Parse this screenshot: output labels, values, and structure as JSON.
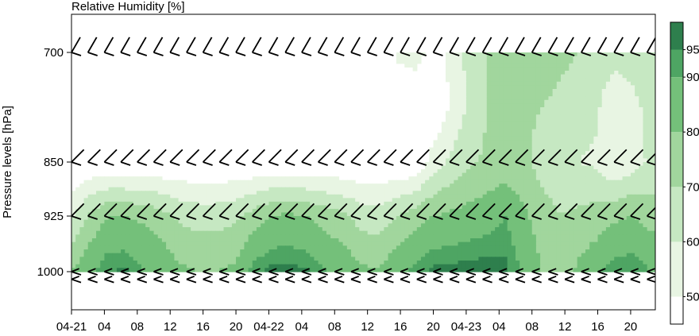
{
  "chart_data": {
    "type": "heatmap",
    "title": "Relative Humidity [%]",
    "ylabel": "Pressure levels [hPa]",
    "xlabel": "",
    "y_ticks": [
      {
        "value": 700,
        "label": "700"
      },
      {
        "value": 850,
        "label": "850"
      },
      {
        "value": 925,
        "label": "925"
      },
      {
        "value": 1000,
        "label": "1000"
      }
    ],
    "ylim": [
      1050,
      640
    ],
    "x_ticks": [
      {
        "value": 0,
        "label": "04-21"
      },
      {
        "value": 4,
        "label": "04"
      },
      {
        "value": 8,
        "label": "08"
      },
      {
        "value": 12,
        "label": "12"
      },
      {
        "value": 16,
        "label": "16"
      },
      {
        "value": 20,
        "label": "20"
      },
      {
        "value": 24,
        "label": "04-22"
      },
      {
        "value": 28,
        "label": "04"
      },
      {
        "value": 32,
        "label": "08"
      },
      {
        "value": 36,
        "label": "12"
      },
      {
        "value": 40,
        "label": "16"
      },
      {
        "value": 44,
        "label": "20"
      },
      {
        "value": 48,
        "label": "04-23"
      },
      {
        "value": 52,
        "label": "04"
      },
      {
        "value": 56,
        "label": "08"
      },
      {
        "value": 60,
        "label": "12"
      },
      {
        "value": 64,
        "label": "16"
      },
      {
        "value": 68,
        "label": "20"
      }
    ],
    "xlim": [
      0,
      71
    ],
    "colorbar": {
      "ticks": [
        50,
        60,
        70,
        80,
        90,
        95
      ],
      "levels": [
        45,
        50,
        60,
        70,
        80,
        90,
        95,
        100
      ],
      "colors": [
        "#ffffff",
        "#e8f5e3",
        "#c6e8c2",
        "#a1d69d",
        "#74c07a",
        "#4ea563",
        "#2e7f4d"
      ]
    },
    "rh_values": [
      [
        80,
        88,
        95,
        96,
        90,
        88,
        82,
        80,
        80,
        82,
        93,
        97,
        97,
        96,
        91,
        88,
        82,
        81,
        88,
        92,
        97,
        97,
        98,
        98,
        97,
        88,
        80,
        72,
        82,
        88,
        94,
        95,
        90
      ],
      [
        58,
        72,
        80,
        80,
        78,
        74,
        68,
        66,
        66,
        68,
        74,
        80,
        82,
        80,
        76,
        72,
        66,
        64,
        70,
        76,
        80,
        82,
        84,
        86,
        90,
        82,
        75,
        70,
        72,
        74,
        78,
        80,
        76
      ],
      [
        40,
        40,
        40,
        40,
        40,
        40,
        40,
        40,
        40,
        40,
        40,
        40,
        40,
        40,
        40,
        40,
        40,
        40,
        40,
        40,
        55,
        62,
        68,
        72,
        74,
        72,
        66,
        62,
        60,
        58,
        50,
        55,
        62
      ],
      [
        40,
        40,
        40,
        40,
        40,
        40,
        40,
        40,
        40,
        40,
        40,
        40,
        40,
        40,
        40,
        40,
        40,
        40,
        40,
        40,
        40,
        52,
        62,
        70,
        72,
        72,
        70,
        68,
        66,
        62,
        52,
        56,
        64
      ],
      [
        40,
        40,
        40,
        40,
        40,
        40,
        40,
        40,
        40,
        40,
        40,
        40,
        40,
        40,
        40,
        40,
        40,
        40,
        52,
        55,
        45,
        52,
        64,
        70,
        74,
        76,
        75,
        72,
        70,
        66,
        64,
        66,
        70
      ]
    ],
    "rh_levels": [
      1000,
      925,
      850,
      775,
      700
    ],
    "rh_times": [
      0,
      2.2,
      4.4,
      6.6,
      8.8,
      11,
      13.2,
      15.4,
      17.6,
      19.8,
      22,
      24.2,
      26.4,
      28.6,
      30.8,
      33,
      35.2,
      37.4,
      39.6,
      41.8,
      44,
      46.2,
      48.4,
      50.6,
      52.8,
      55,
      57.2,
      59.4,
      61.6,
      63.8,
      66,
      68.2,
      70.4
    ],
    "barb_times": [
      0,
      2,
      4,
      6,
      8,
      10,
      12,
      14,
      16,
      18,
      20,
      22,
      24,
      26,
      28,
      30,
      32,
      34,
      36,
      38,
      40,
      42,
      44,
      46,
      48,
      50,
      52,
      54,
      56,
      58,
      60,
      62,
      64,
      66,
      68,
      70
    ],
    "barb_levels": [
      1010,
      1000,
      925,
      850,
      700
    ],
    "wind_barbs": [
      {
        "level": 700,
        "staff_deg": 60,
        "barbs": 1,
        "flip": 0
      },
      {
        "level": 850,
        "staff_deg": 45,
        "barbs": 1,
        "flip": 0
      },
      {
        "level": 925,
        "staff_deg": 45,
        "barbs": 1,
        "flip": 0
      },
      {
        "level": 1000,
        "staff_deg": 10,
        "barbs": 1,
        "flip": 1
      },
      {
        "level": 1010,
        "staff_deg": 10,
        "barbs": 1,
        "flip": 1
      }
    ]
  }
}
